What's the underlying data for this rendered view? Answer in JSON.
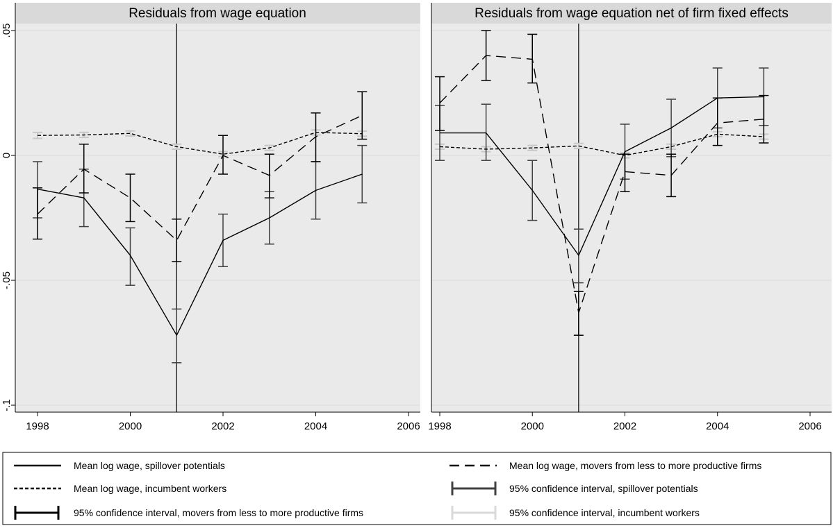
{
  "chart_data": [
    {
      "type": "line",
      "title": "Residuals from wage equation",
      "x": [
        1998,
        1999,
        2000,
        2001,
        2002,
        2003,
        2004,
        2005
      ],
      "xlim": [
        1998,
        2006
      ],
      "ylim": [
        -0.1,
        0.05
      ],
      "x_ticks": [
        "1998",
        "2000",
        "2002",
        "2004",
        "2006"
      ],
      "y_ticks": [
        ".05",
        "0",
        "-.05",
        "-.1"
      ],
      "y_tick_values": [
        0.05,
        0,
        -0.05,
        -0.1
      ],
      "x_tick_values": [
        1998,
        2000,
        2002,
        2004,
        2006
      ],
      "vline": 2001,
      "grid": true,
      "series": [
        {
          "name": "Mean log wage, spillover potentials",
          "style": "solid",
          "color": "#000000",
          "values": [
            -0.0135,
            -0.017,
            -0.04,
            -0.072,
            -0.034,
            -0.025,
            -0.014,
            -0.0075
          ],
          "ci_low": [
            -0.025,
            -0.0285,
            -0.052,
            -0.083,
            -0.0445,
            -0.0355,
            -0.0255,
            -0.019
          ],
          "ci_high": [
            -0.0025,
            -0.0055,
            -0.029,
            -0.0615,
            -0.0235,
            -0.0145,
            -0.0025,
            0.004
          ]
        },
        {
          "name": "Mean log wage, movers from less to more productive firms",
          "style": "dashed",
          "color": "#000000",
          "values": [
            -0.0235,
            -0.0055,
            -0.017,
            -0.034,
            0.0,
            -0.008,
            0.0075,
            0.016
          ],
          "ci_low": [
            -0.0335,
            -0.015,
            -0.0265,
            -0.0425,
            -0.0075,
            -0.017,
            -0.0025,
            0.0065
          ],
          "ci_high": [
            -0.013,
            0.0045,
            -0.0075,
            -0.0255,
            0.008,
            0.0005,
            0.017,
            0.0255
          ]
        },
        {
          "name": "Mean log wage, incumbent workers",
          "style": "dotted",
          "color": "#000000",
          "values": [
            0.008,
            0.0082,
            0.0088,
            0.0035,
            0.0005,
            0.003,
            0.0092,
            0.0087
          ],
          "ci_low": [
            0.0068,
            0.0072,
            0.0078,
            0.0025,
            -0.0005,
            0.002,
            0.0082,
            0.0077
          ],
          "ci_high": [
            0.0092,
            0.0092,
            0.0098,
            0.0045,
            0.0015,
            0.004,
            0.0102,
            0.0097
          ]
        }
      ]
    },
    {
      "type": "line",
      "title": "Residuals from wage equation net of firm fixed effects",
      "x": [
        1998,
        1999,
        2000,
        2001,
        2002,
        2003,
        2004,
        2005
      ],
      "xlim": [
        1998,
        2006
      ],
      "ylim": [
        -0.1,
        0.05
      ],
      "x_ticks": [
        "1998",
        "2000",
        "2002",
        "2004",
        "2006"
      ],
      "x_tick_values": [
        1998,
        2000,
        2002,
        2004,
        2006
      ],
      "y_tick_values": [
        0.05,
        0,
        -0.05,
        -0.1
      ],
      "vline": 2001,
      "grid": true,
      "series": [
        {
          "name": "Mean log wage, spillover potentials",
          "style": "solid",
          "color": "#000000",
          "values": [
            0.009,
            0.009,
            -0.014,
            -0.04,
            0.0015,
            0.011,
            0.023,
            0.0235
          ],
          "ci_low": [
            -0.002,
            -0.002,
            -0.026,
            -0.051,
            -0.0095,
            -0.0005,
            0.011,
            0.012
          ],
          "ci_high": [
            0.02,
            0.0205,
            -0.002,
            -0.0295,
            0.0125,
            0.0225,
            0.035,
            0.035
          ]
        },
        {
          "name": "Mean log wage, movers from less to more productive firms",
          "style": "dashed",
          "color": "#000000",
          "values": [
            0.021,
            0.04,
            0.0385,
            -0.063,
            -0.0065,
            -0.008,
            0.013,
            0.0145
          ],
          "ci_low": [
            0.01,
            0.03,
            0.029,
            -0.072,
            -0.0145,
            -0.0165,
            0.004,
            0.005
          ],
          "ci_high": [
            0.0315,
            0.05,
            0.0485,
            -0.0545,
            0.0005,
            0.0005,
            0.023,
            0.024
          ]
        },
        {
          "name": "Mean log wage, incumbent workers",
          "style": "dotted",
          "color": "#000000",
          "values": [
            0.0035,
            0.0025,
            0.003,
            0.0038,
            0.0,
            0.0035,
            0.0085,
            0.0075
          ],
          "ci_low": [
            0.0025,
            0.0015,
            0.002,
            0.0028,
            -0.001,
            0.0025,
            0.0075,
            0.0065
          ],
          "ci_high": [
            0.0045,
            0.0035,
            0.004,
            0.0048,
            0.001,
            0.0045,
            0.0095,
            0.0085
          ]
        }
      ]
    }
  ],
  "legend": {
    "items": [
      {
        "label": "Mean log wage, spillover potentials",
        "kind": "line",
        "style": "solid",
        "color": "#000000"
      },
      {
        "label": "Mean log wage, movers from less to more productive firms",
        "kind": "line",
        "style": "dashed",
        "color": "#000000"
      },
      {
        "label": "Mean log wage, incumbent workers",
        "kind": "line",
        "style": "dotted",
        "color": "#000000"
      },
      {
        "label": "95% confidence interval, spillover potentials",
        "kind": "ci",
        "color": "#404040"
      },
      {
        "label": "95% confidence interval, movers from less to more productive firms",
        "kind": "ci",
        "color": "#000000"
      },
      {
        "label": "95% confidence interval, incumbent workers",
        "kind": "ci",
        "color": "#d9d9d9"
      }
    ]
  },
  "colors": {
    "plot_background": "#eaeaea",
    "title_strip": "#d9d9d9",
    "gridline": "#dcdcdc",
    "ci_spillover": "#404040",
    "ci_movers": "#000000",
    "ci_incumbent": "#d9d9d9"
  }
}
